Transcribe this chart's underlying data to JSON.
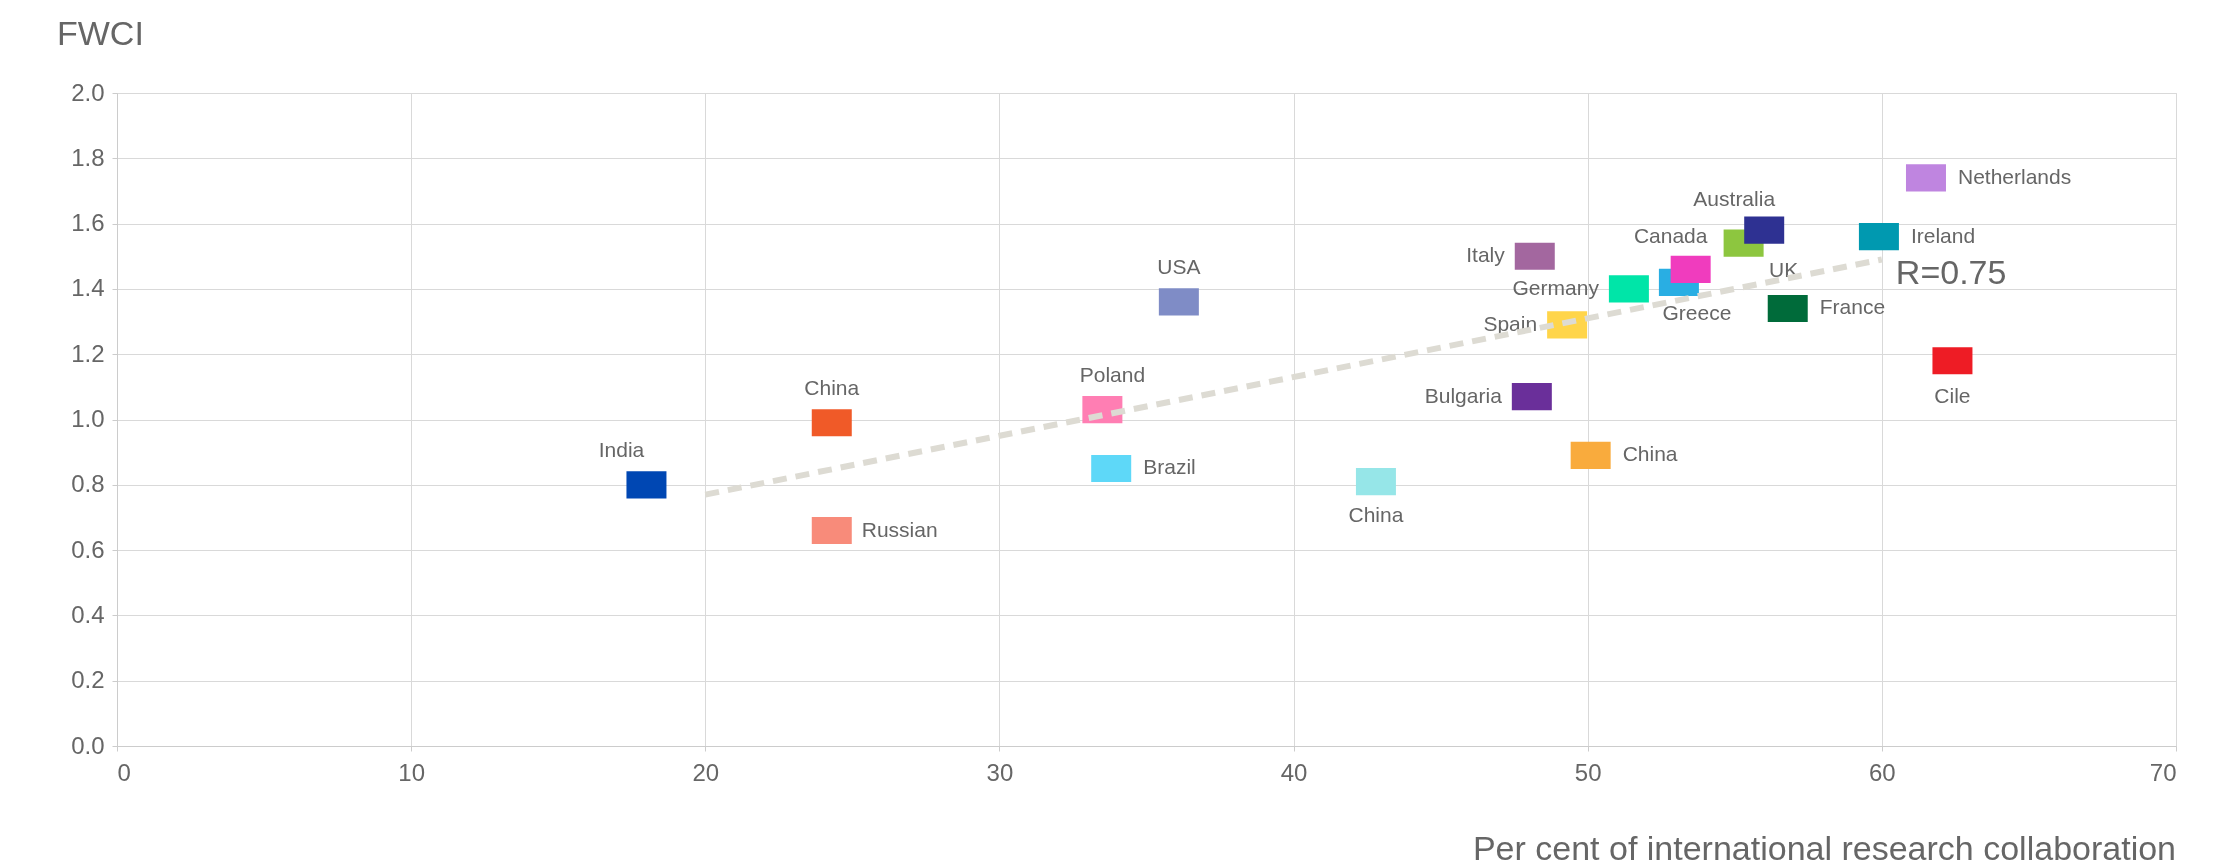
{
  "chart_data": {
    "type": "scatter",
    "xlabel": "Per cent of international research collaboration",
    "ylabel": "FWCI",
    "xlim": [
      0,
      70
    ],
    "xticks": [
      0,
      10,
      20,
      30,
      40,
      50,
      60,
      70
    ],
    "ylim": [
      0,
      2
    ],
    "yticks": [
      {
        "value": 0,
        "label": "0.0"
      },
      0.2,
      0.4,
      0.6,
      0.8,
      {
        "value": 1,
        "label": "1.0"
      },
      1.2,
      1.4,
      1.6,
      1.8,
      {
        "value": 2,
        "label": "2.0"
      }
    ],
    "grid": true,
    "marker": "square",
    "series": [
      {
        "name": "India",
        "color": "#0047b3",
        "x": [
          18.0
        ],
        "values": [
          0.8
        ]
      },
      {
        "name": "China",
        "color": "#f05a28",
        "x": [
          24.3
        ],
        "values": [
          0.99
        ]
      },
      {
        "name": "Russian",
        "color": "#f88b7a",
        "x": [
          24.3
        ],
        "values": [
          0.66
        ]
      },
      {
        "name": "Poland",
        "color": "#ff7eb3",
        "x": [
          33.5
        ],
        "values": [
          1.03
        ]
      },
      {
        "name": "Brazil",
        "color": "#5ed8f8",
        "x": [
          33.8
        ],
        "values": [
          0.85
        ]
      },
      {
        "name": "USA",
        "color": "#7f8cc6",
        "x": [
          36.1
        ],
        "values": [
          1.36
        ]
      },
      {
        "name": "China",
        "color": "#96e6e8",
        "x": [
          42.8
        ],
        "values": [
          0.81
        ]
      },
      {
        "name": "Bulgaria",
        "color": "#6a2f9a",
        "x": [
          48.1
        ],
        "values": [
          1.07
        ]
      },
      {
        "name": "Italy",
        "color": "#a3679f",
        "x": [
          48.2
        ],
        "values": [
          1.5
        ]
      },
      {
        "name": "China",
        "color": "#f9ab3d",
        "x": [
          50.1
        ],
        "values": [
          0.89
        ]
      },
      {
        "name": "Spain",
        "color": "#ffd54a",
        "x": [
          49.3
        ],
        "values": [
          1.29
        ]
      },
      {
        "name": "Germany",
        "color": "#00e5a8",
        "x": [
          51.4
        ],
        "values": [
          1.4
        ]
      },
      {
        "name": "Greece",
        "color": "#29aee3",
        "x": [
          53.1
        ],
        "values": [
          1.42
        ]
      },
      {
        "name": "Canada",
        "color": "#f03cbe",
        "x": [
          53.5
        ],
        "values": [
          1.46
        ]
      },
      {
        "name": "UK",
        "color": "#8dc63f",
        "x": [
          55.3
        ],
        "values": [
          1.54
        ]
      },
      {
        "name": "Australia",
        "color": "#2e3192",
        "x": [
          56.0
        ],
        "values": [
          1.58
        ]
      },
      {
        "name": "France",
        "color": "#006b3a",
        "x": [
          56.8
        ],
        "values": [
          1.34
        ]
      },
      {
        "name": "Ireland",
        "color": "#0099b0",
        "x": [
          59.9
        ],
        "values": [
          1.56
        ]
      },
      {
        "name": "Netherlands",
        "color": "#bf85e0",
        "x": [
          61.5
        ],
        "values": [
          1.74
        ]
      },
      {
        "name": "Cile",
        "color": "#ee1c25",
        "x": [
          62.4
        ],
        "values": [
          1.18
        ]
      },
      {
        "type": "line",
        "color": "#dddbd3",
        "line_style": "dashed",
        "marker": "none",
        "x": [
          20,
          60
        ],
        "values": [
          0.77,
          1.49
        ]
      }
    ],
    "annotations": [
      "R=0.75"
    ]
  }
}
